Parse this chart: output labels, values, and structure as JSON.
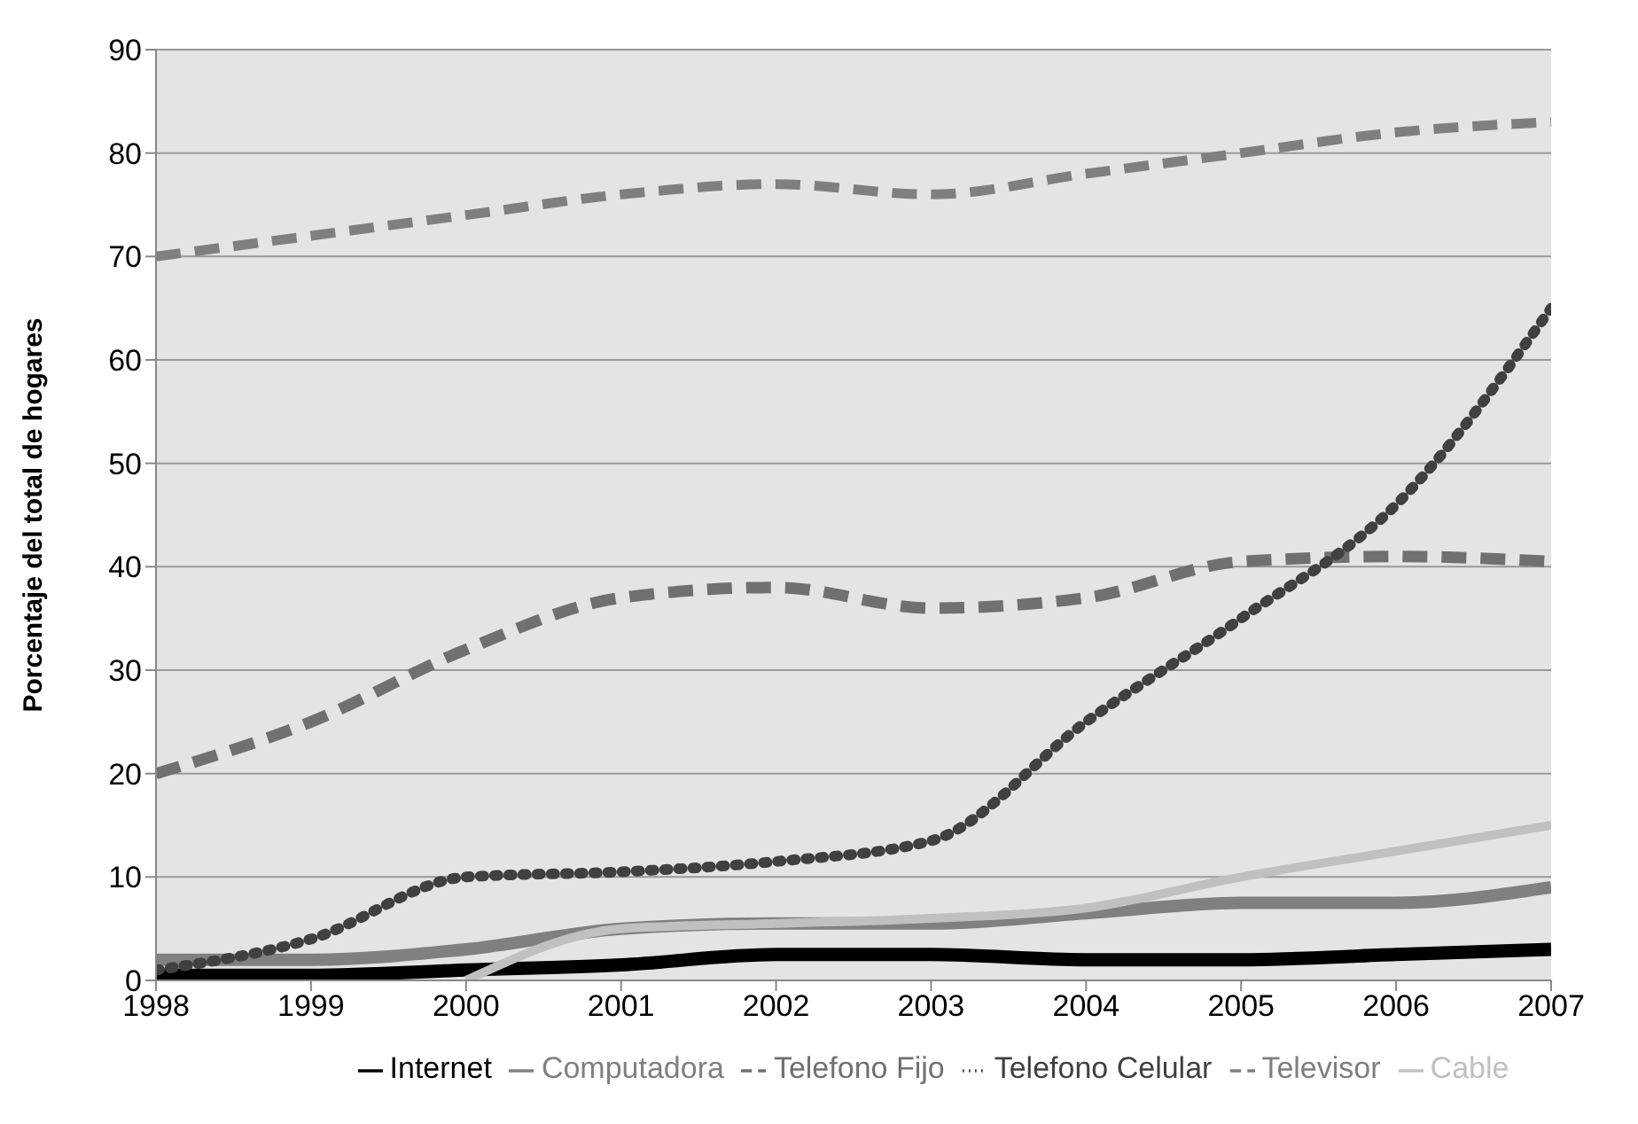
{
  "chart_data": {
    "type": "line",
    "ylabel": "Porcentaje del total de hogares",
    "x": [
      1998,
      1999,
      2000,
      2001,
      2002,
      2003,
      2004,
      2005,
      2006,
      2007
    ],
    "xlim": [
      1998,
      2007
    ],
    "xticks": [
      1998,
      1999,
      2000,
      2001,
      2002,
      2003,
      2004,
      2005,
      2006,
      2007
    ],
    "ylim": [
      0,
      90
    ],
    "yticks": [
      0,
      10,
      20,
      30,
      40,
      50,
      60,
      70,
      80,
      90
    ],
    "grid": "y",
    "legend": "bottom",
    "marker": "none",
    "series": [
      {
        "name": "Internet",
        "color": "#000000",
        "line_style": "solid",
        "values": [
          0.5,
          0.5,
          1,
          1.5,
          2.5,
          2.5,
          2,
          2,
          2.5,
          3
        ]
      },
      {
        "name": "Computadora",
        "color": "#808080",
        "line_style": "solid",
        "values": [
          2,
          2,
          3,
          5,
          5.5,
          5.5,
          6.5,
          7.5,
          7.5,
          9
        ]
      },
      {
        "name": "Telefono Fijo",
        "color": "#707070",
        "line_style": "dashed",
        "values": [
          20,
          25,
          32,
          37,
          38,
          36,
          37,
          40.5,
          41,
          40.5
        ]
      },
      {
        "name": "Telefono Celular",
        "color": "#404040",
        "line_style": "dotted",
        "values": [
          1,
          4,
          10,
          10.5,
          11.5,
          13.5,
          25,
          35,
          46,
          65
        ]
      },
      {
        "name": "Televisor",
        "color": "#7f7f7f",
        "line_style": "dashed",
        "values": [
          70,
          72,
          74,
          76,
          77,
          76,
          78,
          80,
          82,
          83
        ]
      },
      {
        "name": "Cable",
        "color": "#c0c0c0",
        "line_style": "solid",
        "values": [
          null,
          null,
          0,
          5,
          5.5,
          6,
          7,
          10,
          12.5,
          15
        ]
      }
    ]
  }
}
